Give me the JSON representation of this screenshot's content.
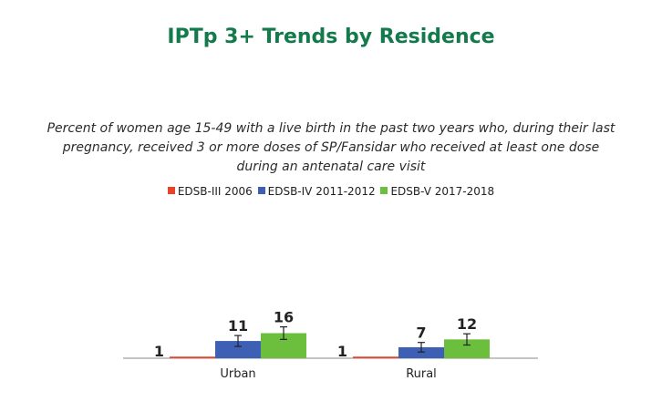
{
  "chart_data": {
    "type": "bar",
    "title": "IPTp 3+ Trends by Residence",
    "subtitle": "Percent of women age 15-49 with a live birth in the past two years who, during their last pregnancy, received 3 or more doses of SP/Fansidar who received at least one dose during an antenatal care visit",
    "categories": [
      "Urban",
      "Rural"
    ],
    "series": [
      {
        "name": "EDSB-III 2006",
        "color": "#e8422b",
        "values": [
          1,
          1
        ]
      },
      {
        "name": "EDSB-IV 2011-2012",
        "color": "#3d5fb4",
        "values": [
          11,
          7
        ]
      },
      {
        "name": "EDSB-V 2017-2018",
        "color": "#6cbf3c",
        "values": [
          16,
          12
        ]
      }
    ],
    "error_bars": true,
    "ylim": [
      0,
      100
    ],
    "legend_position": "top-center",
    "grid": false
  },
  "colors": {
    "title": "#137a4b",
    "axis": "#a0a0a0"
  }
}
